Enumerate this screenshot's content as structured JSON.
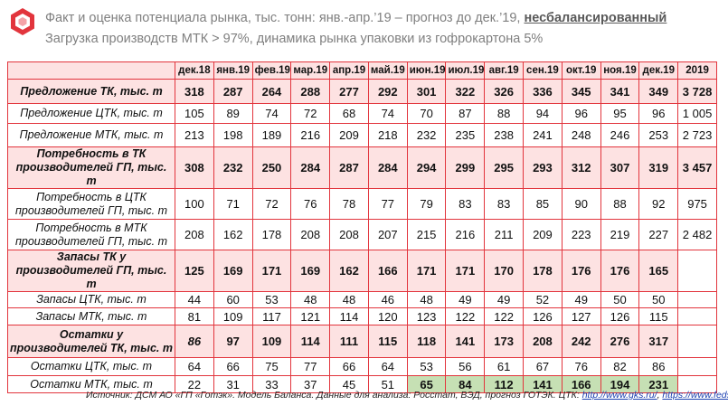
{
  "header": {
    "title": "Факт и оценка потенциала рынка, тыс. тонн: янв.-апр.’19 – прогноз до дек.’19,",
    "title_highlight": "несбалансированный",
    "subtitle": "Загрузка производств МТК > 97%, динамика рынка упаковки из гофрокартона 5%"
  },
  "table": {
    "columns": [
      "дек.18",
      "янв.19",
      "фев.19",
      "мар.19",
      "апр.19",
      "май.19",
      "июн.19",
      "июл.19",
      "авг.19",
      "сен.19",
      "окт.19",
      "ноя.19",
      "дек.19",
      "2019"
    ],
    "rows": [
      {
        "label": "Предложение ТК, тыс. т",
        "values": [
          318,
          287,
          264,
          288,
          277,
          292,
          301,
          322,
          326,
          336,
          345,
          341,
          349
        ],
        "total": "3 728"
      },
      {
        "label": "Предложение ЦТК, тыс. т",
        "values": [
          105,
          89,
          74,
          72,
          68,
          74,
          70,
          87,
          88,
          94,
          96,
          95,
          96
        ],
        "total": "1 005"
      },
      {
        "label": "Предложение МТК, тыс. т",
        "values": [
          213,
          198,
          189,
          216,
          209,
          218,
          232,
          235,
          238,
          241,
          248,
          246,
          253
        ],
        "total": "2 723"
      },
      {
        "label": "Потребность в ТК производителей ГП, тыс. т",
        "values": [
          308,
          232,
          250,
          284,
          287,
          284,
          294,
          299,
          295,
          293,
          312,
          307,
          319
        ],
        "total": "3 457"
      },
      {
        "label": "Потребность в ЦТК производителей ГП, тыс. т",
        "values": [
          100,
          71,
          72,
          76,
          78,
          77,
          79,
          83,
          83,
          85,
          90,
          88,
          92
        ],
        "total": 975
      },
      {
        "label": "Потребность в МТК производителей ГП, тыс. т",
        "values": [
          208,
          162,
          178,
          208,
          208,
          207,
          215,
          216,
          211,
          209,
          223,
          219,
          227
        ],
        "total": "2 482"
      },
      {
        "label": "Запасы ТК у производителей ГП, тыс. т",
        "values": [
          125,
          169,
          171,
          169,
          162,
          166,
          171,
          171,
          170,
          178,
          176,
          176,
          165
        ]
      },
      {
        "label": "Запасы ЦТК, тыс. т",
        "values": [
          44,
          60,
          53,
          48,
          48,
          46,
          48,
          49,
          49,
          52,
          49,
          50,
          50
        ]
      },
      {
        "label": "Запасы МТК, тыс. т",
        "values": [
          81,
          109,
          117,
          121,
          114,
          120,
          123,
          122,
          122,
          126,
          127,
          126,
          115
        ]
      },
      {
        "label": "Остатки у производителей ТК, тыс. т",
        "values": [
          86,
          97,
          109,
          114,
          111,
          115,
          118,
          141,
          173,
          208,
          242,
          276,
          317
        ]
      },
      {
        "label": "Остатки ЦТК, тыс. т",
        "values": [
          64,
          66,
          75,
          77,
          66,
          64,
          53,
          56,
          61,
          67,
          76,
          82,
          86
        ]
      },
      {
        "label": "Остатки МТК, тыс. т",
        "values": [
          22,
          31,
          33,
          37,
          45,
          51,
          65,
          84,
          112,
          141,
          166,
          194,
          231
        ]
      }
    ]
  },
  "footer": {
    "source": "Источник: ДСМ АО «ГП «Готэк». Модель Баланса. Данные для анализа: Росстат, ВЭД, прогноз ГОТЭК. ЦТК:",
    "links": [
      "http://www.gks.ru/",
      "https://www.fedstat.ru/"
    ],
    "link_separator": ","
  }
}
